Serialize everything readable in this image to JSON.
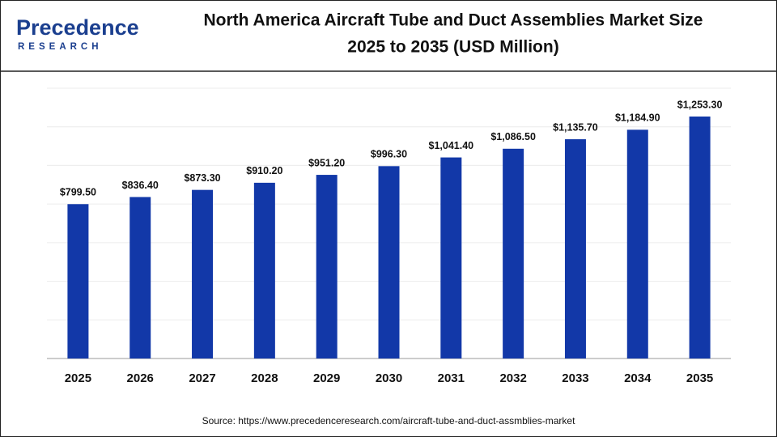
{
  "logo": {
    "name": "Precedence",
    "tagline": "RESEARCH"
  },
  "chart_data": {
    "type": "bar",
    "title": "North America Aircraft Tube and Duct Assemblies Market Size",
    "subtitle": "2025 to 2035 (USD Million)",
    "categories": [
      "2025",
      "2026",
      "2027",
      "2028",
      "2029",
      "2030",
      "2031",
      "2032",
      "2033",
      "2034",
      "2035"
    ],
    "values": [
      799.5,
      836.4,
      873.3,
      910.2,
      951.2,
      996.3,
      1041.4,
      1086.5,
      1135.7,
      1184.9,
      1253.3
    ],
    "value_labels": [
      "$799.50",
      "$836.40",
      "$873.30",
      "$910.20",
      "$951.20",
      "$996.30",
      "$1,041.40",
      "$1,086.50",
      "$1,135.70",
      "$1,184.90",
      "$1,253.30"
    ],
    "color": "#1238a8",
    "ylim": [
      0,
      1400
    ],
    "yticks": [
      0,
      200,
      400,
      600,
      800,
      1000,
      1200,
      1400
    ],
    "grid": true,
    "source": "Source: https://www.precedenceresearch.com/aircraft-tube-and-duct-assmblies-market"
  }
}
